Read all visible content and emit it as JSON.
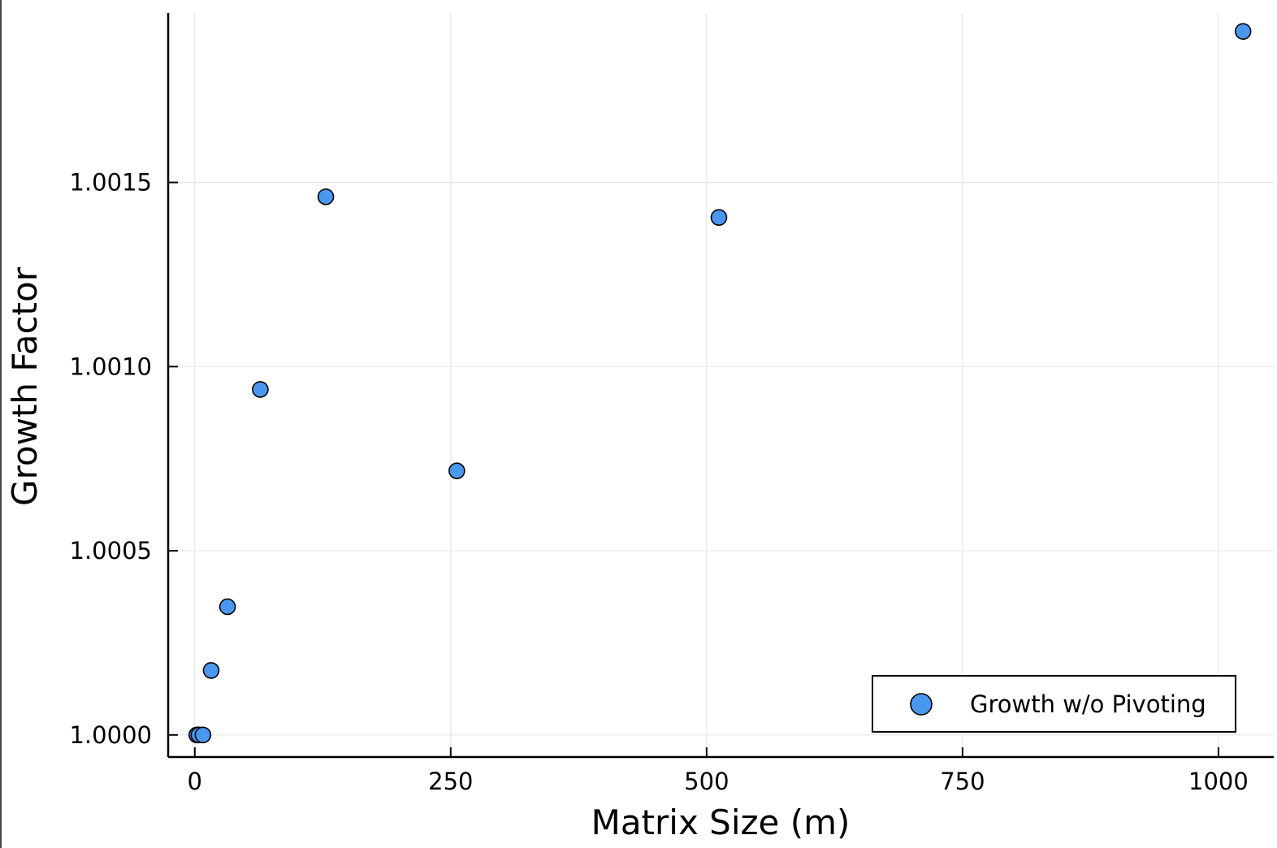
{
  "chart_data": {
    "type": "scatter",
    "title": "",
    "xlabel": "Matrix Size (m)",
    "ylabel": "Growth Factor",
    "xlim": [
      -26,
      1054
    ],
    "ylim": [
      0.99994,
      1.00196
    ],
    "xticks": [
      0,
      250,
      500,
      750,
      1000
    ],
    "xtick_labels": [
      "0",
      "250",
      "500",
      "750",
      "1000"
    ],
    "yticks": [
      1.0,
      1.0005,
      1.001,
      1.0015
    ],
    "ytick_labels": [
      "1.0000",
      "1.0005",
      "1.0010",
      "1.0015"
    ],
    "grid": true,
    "legend_position": "bottom-right",
    "series": [
      {
        "name": "Growth w/o Pivoting",
        "color": "#4a97ef",
        "x": [
          2,
          4,
          8,
          16,
          32,
          64,
          128,
          256,
          512,
          1024
        ],
        "y": [
          1.0,
          1.0,
          1.0,
          1.000175,
          1.000348,
          1.000938,
          1.001461,
          1.000717,
          1.001405,
          1.00191
        ]
      }
    ]
  }
}
